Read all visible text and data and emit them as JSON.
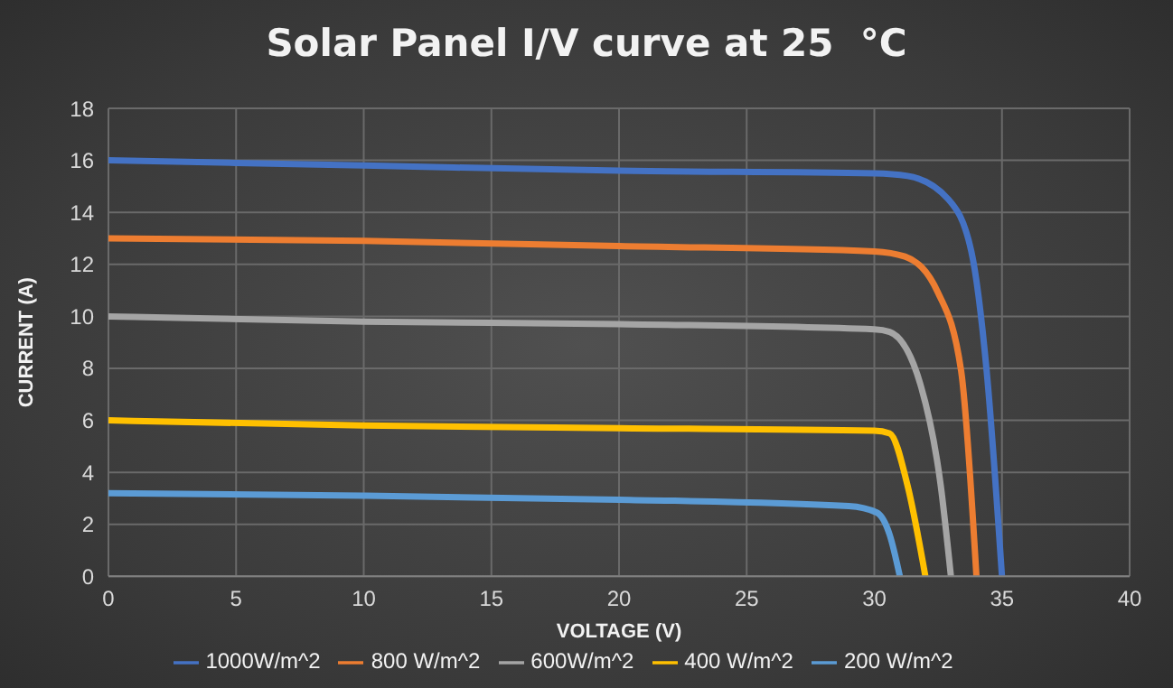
{
  "chart_data": {
    "type": "line",
    "title": "Solar Panel I/V curve at 25  °C",
    "xlabel": "VOLTAGE (V)",
    "ylabel": "CURRENT (A)",
    "xlim": [
      0,
      40
    ],
    "xticks": [
      0,
      5,
      10,
      15,
      20,
      25,
      30,
      35,
      40
    ],
    "ylim": [
      0,
      18
    ],
    "yticks": [
      0,
      2,
      4,
      6,
      8,
      10,
      12,
      14,
      16,
      18
    ],
    "grid": true,
    "legend": "bottom",
    "marker": "none",
    "line_style": "solid",
    "series": [
      {
        "name": "1000W/m^2",
        "color": "#4472c4",
        "x": [
          0,
          10,
          20,
          30,
          31.3,
          32.9,
          33.8,
          34.4,
          35
        ],
        "values": [
          16,
          15.8,
          15.6,
          15.5,
          15.4,
          14.5,
          12.5,
          7.9,
          0
        ]
      },
      {
        "name": "800 W/m^2",
        "color": "#ed7d31",
        "x": [
          0,
          10,
          20,
          30,
          31.2,
          32.5,
          33.4,
          34
        ],
        "values": [
          13,
          12.9,
          12.7,
          12.5,
          12.3,
          10.9,
          7.9,
          0
        ]
      },
      {
        "name": "600W/m^2",
        "color": "#a5a5a5",
        "x": [
          0,
          10,
          20,
          30,
          30.6,
          31.8,
          32.6,
          33
        ],
        "values": [
          10,
          9.8,
          9.7,
          9.5,
          9.4,
          7.4,
          3.5,
          0
        ]
      },
      {
        "name": "400 W/m^2",
        "color": "#ffc000",
        "x": [
          0,
          10,
          20,
          30,
          30.6,
          31.3,
          32
        ],
        "values": [
          6,
          5.8,
          5.7,
          5.6,
          5.5,
          3.5,
          0
        ]
      },
      {
        "name": "200 W/m^2",
        "color": "#5b9bd5",
        "x": [
          0,
          10,
          20,
          29,
          30.1,
          30.6,
          31
        ],
        "values": [
          3.2,
          3.1,
          2.95,
          2.7,
          2.45,
          1.6,
          0
        ]
      }
    ]
  }
}
